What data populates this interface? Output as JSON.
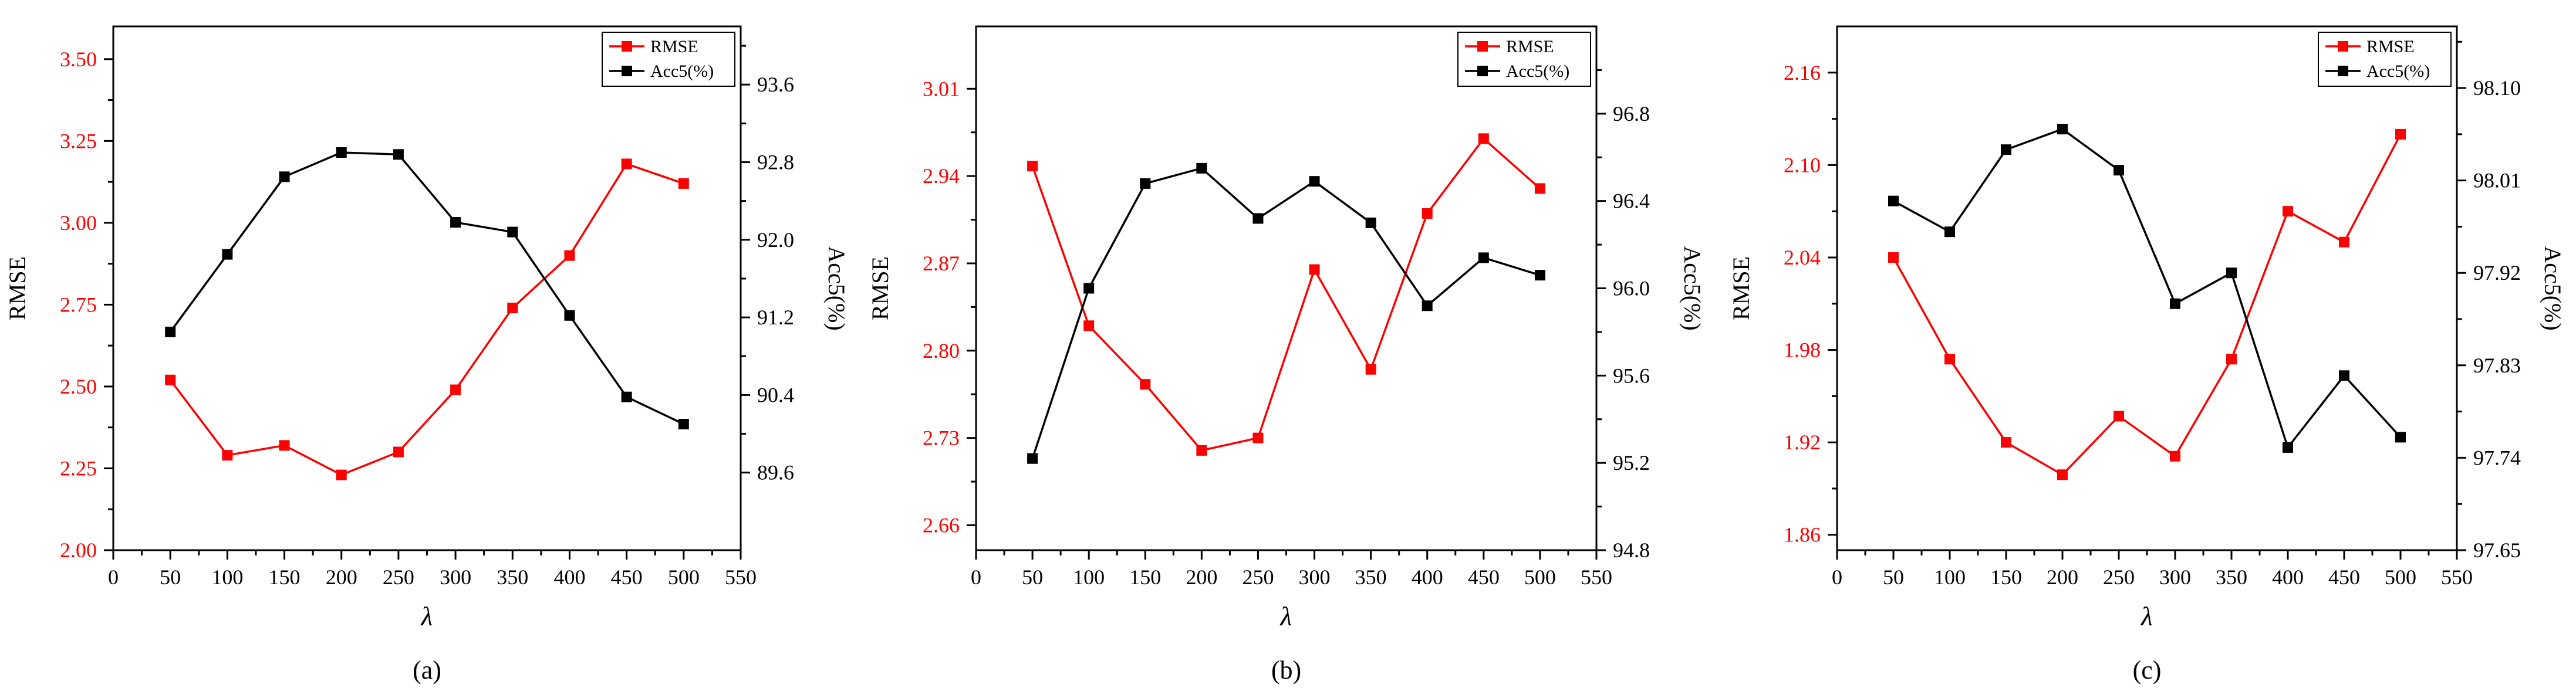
{
  "colors": {
    "rmse": "#ff0000",
    "acc": "#000000",
    "axis": "#000000"
  },
  "chart_data": [
    {
      "type": "line",
      "panel_label": "(a)",
      "xlabel": "λ",
      "ylabel_left": "RMSE",
      "ylabel_right": "Acc5(%)",
      "x": [
        50,
        100,
        150,
        200,
        250,
        300,
        350,
        400,
        450,
        500
      ],
      "xlim": [
        0,
        550
      ],
      "xticks": [
        "0",
        "50",
        "100",
        "150",
        "200",
        "250",
        "300",
        "350",
        "400",
        "450",
        "500",
        "550"
      ],
      "ylim_left": [
        2.0,
        3.6
      ],
      "yticks_left": [
        "2.00",
        "2.25",
        "2.50",
        "2.75",
        "3.00",
        "3.25",
        "3.50"
      ],
      "ylim_right": [
        88.8,
        94.2
      ],
      "yticks_right": [
        "89.6",
        "90.4",
        "91.2",
        "92.0",
        "92.8",
        "93.6"
      ],
      "legend_position": "top-right",
      "series": [
        {
          "name": "RMSE",
          "axis": "left",
          "color": "#ff0000",
          "values": [
            2.52,
            2.29,
            2.32,
            2.23,
            2.3,
            2.49,
            2.74,
            2.9,
            3.18,
            3.12
          ]
        },
        {
          "name": "Acc5(%)",
          "axis": "right",
          "color": "#000000",
          "values": [
            91.05,
            91.85,
            92.65,
            92.9,
            92.88,
            92.18,
            92.08,
            91.22,
            90.38,
            90.1
          ]
        }
      ]
    },
    {
      "type": "line",
      "panel_label": "(b)",
      "xlabel": "λ",
      "ylabel_left": "RMSE",
      "ylabel_right": "Acc5(%)",
      "x": [
        50,
        100,
        150,
        200,
        250,
        300,
        350,
        400,
        450,
        500
      ],
      "xlim": [
        0,
        550
      ],
      "xticks": [
        "0",
        "50",
        "100",
        "150",
        "200",
        "250",
        "300",
        "350",
        "400",
        "450",
        "500",
        "550"
      ],
      "ylim_left": [
        2.64,
        3.06
      ],
      "yticks_left": [
        "2.66",
        "2.73",
        "2.80",
        "2.87",
        "2.94",
        "3.01"
      ],
      "ylim_right": [
        94.8,
        97.2
      ],
      "yticks_right": [
        "94.8",
        "95.2",
        "95.6",
        "96.0",
        "96.4",
        "96.8"
      ],
      "legend_position": "top-right",
      "series": [
        {
          "name": "RMSE",
          "axis": "left",
          "color": "#ff0000",
          "values": [
            2.948,
            2.82,
            2.773,
            2.72,
            2.73,
            2.865,
            2.785,
            2.91,
            2.97,
            2.93
          ]
        },
        {
          "name": "Acc5(%)",
          "axis": "right",
          "color": "#000000",
          "values": [
            95.22,
            96.0,
            96.48,
            96.55,
            96.32,
            96.49,
            96.3,
            95.92,
            96.14,
            96.06
          ]
        }
      ]
    },
    {
      "type": "line",
      "panel_label": "(c)",
      "xlabel": "λ",
      "ylabel_left": "RMSE",
      "ylabel_right": "Acc5(%)",
      "x": [
        50,
        100,
        150,
        200,
        250,
        300,
        350,
        400,
        450,
        500
      ],
      "xlim": [
        0,
        550
      ],
      "xticks": [
        "0",
        "50",
        "100",
        "150",
        "200",
        "250",
        "300",
        "350",
        "400",
        "450",
        "500",
        "550"
      ],
      "ylim_left": [
        1.85,
        2.19
      ],
      "yticks_left": [
        "1.86",
        "1.92",
        "1.98",
        "2.04",
        "2.10",
        "2.16"
      ],
      "ylim_right": [
        97.65,
        98.16
      ],
      "yticks_right": [
        "97.65",
        "97.74",
        "97.83",
        "97.92",
        "98.01",
        "98.10"
      ],
      "legend_position": "top-right",
      "series": [
        {
          "name": "RMSE",
          "axis": "left",
          "color": "#ff0000",
          "values": [
            2.04,
            1.974,
            1.92,
            1.899,
            1.937,
            1.911,
            1.974,
            2.07,
            2.05,
            2.12
          ]
        },
        {
          "name": "Acc5(%)",
          "axis": "right",
          "color": "#000000",
          "values": [
            97.99,
            97.96,
            98.04,
            98.06,
            98.02,
            97.89,
            97.92,
            97.75,
            97.82,
            97.76
          ]
        }
      ]
    }
  ]
}
